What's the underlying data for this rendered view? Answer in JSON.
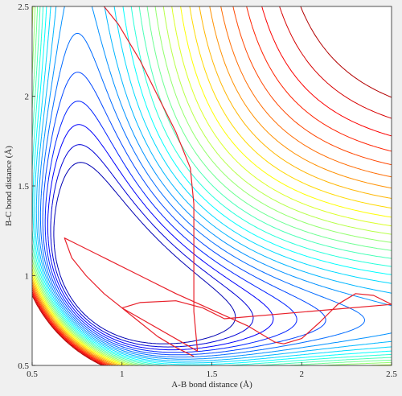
{
  "chart_data": {
    "type": "contour",
    "xlabel": "A-B bond distance (Å)",
    "ylabel": "B-C bond distance (Å)",
    "xlim": [
      0.5,
      2.5
    ],
    "ylim": [
      0.5,
      2.5
    ],
    "xticks": [
      0.5,
      1,
      1.5,
      2,
      2.5
    ],
    "yticks": [
      0.5,
      1,
      1.5,
      2,
      2.5
    ],
    "xtick_labels": [
      "0.5",
      "1",
      "1.5",
      "2",
      "2.5"
    ],
    "ytick_labels": [
      "0.5",
      "1",
      "1.5",
      "2",
      "2.5"
    ],
    "grid": false,
    "legend": "none",
    "colormap": "jet",
    "contour_levels": {
      "count": 26,
      "basin_minimum": -0.3,
      "step": 0.042
    },
    "trajectory": {
      "color": "#e8202a",
      "points": [
        [
          1.4,
          0.55
        ],
        [
          1.3,
          0.6
        ],
        [
          1.2,
          0.66
        ],
        [
          1.1,
          0.74
        ],
        [
          1.0,
          0.82
        ],
        [
          0.9,
          0.9
        ],
        [
          0.8,
          1.0
        ],
        [
          0.72,
          1.1
        ],
        [
          0.68,
          1.21
        ],
        [
          0.74,
          1.18
        ],
        [
          0.9,
          1.1
        ],
        [
          1.1,
          1.0
        ],
        [
          1.3,
          0.9
        ],
        [
          1.5,
          0.81
        ],
        [
          1.7,
          0.72
        ],
        [
          1.85,
          0.63
        ],
        [
          1.9,
          0.62
        ],
        [
          2.0,
          0.65
        ],
        [
          2.1,
          0.74
        ],
        [
          2.2,
          0.84
        ],
        [
          2.3,
          0.9
        ],
        [
          2.4,
          0.89
        ],
        [
          2.5,
          0.84
        ],
        [
          1.57,
          0.76
        ],
        [
          1.45,
          0.82
        ],
        [
          1.3,
          0.86
        ],
        [
          1.1,
          0.85
        ],
        [
          1.0,
          0.82
        ],
        [
          1.42,
          0.58
        ],
        [
          1.4,
          0.8
        ],
        [
          1.4,
          1.1
        ],
        [
          1.4,
          1.4
        ],
        [
          1.38,
          1.6
        ],
        [
          1.3,
          1.8
        ],
        [
          1.2,
          2.0
        ],
        [
          1.1,
          2.2
        ],
        [
          0.98,
          2.4
        ],
        [
          0.9,
          2.5
        ]
      ]
    }
  }
}
